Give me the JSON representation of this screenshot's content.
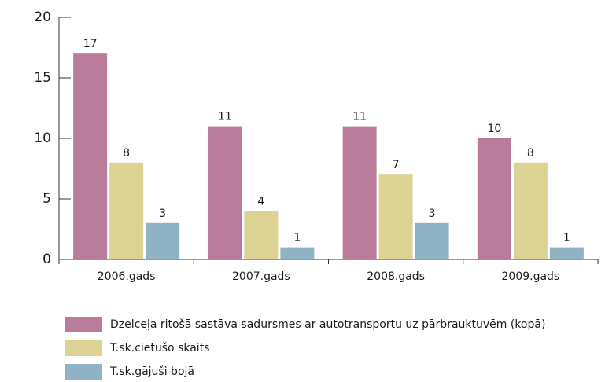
{
  "chart_data": {
    "type": "bar",
    "categories": [
      "2006.gads",
      "2007.gads",
      "2008.gads",
      "2009.gads"
    ],
    "series": [
      {
        "name": "Dzelceļa ritošā sastāva sadursmes ar autotransportu uz pārbrauktuvēm (kopā)",
        "color": "#b97c9b",
        "values": [
          17,
          11,
          11,
          10
        ]
      },
      {
        "name": "T.sk.cietušo skaits",
        "color": "#dcd294",
        "values": [
          8,
          4,
          7,
          8
        ]
      },
      {
        "name": "T.sk.gājuši bojā",
        "color": "#8fb3c4",
        "values": [
          3,
          1,
          3,
          1
        ]
      }
    ],
    "ylim": [
      0,
      20
    ],
    "yticks": [
      0,
      5,
      10,
      15,
      20
    ],
    "grid": false,
    "legend": "bottom"
  }
}
